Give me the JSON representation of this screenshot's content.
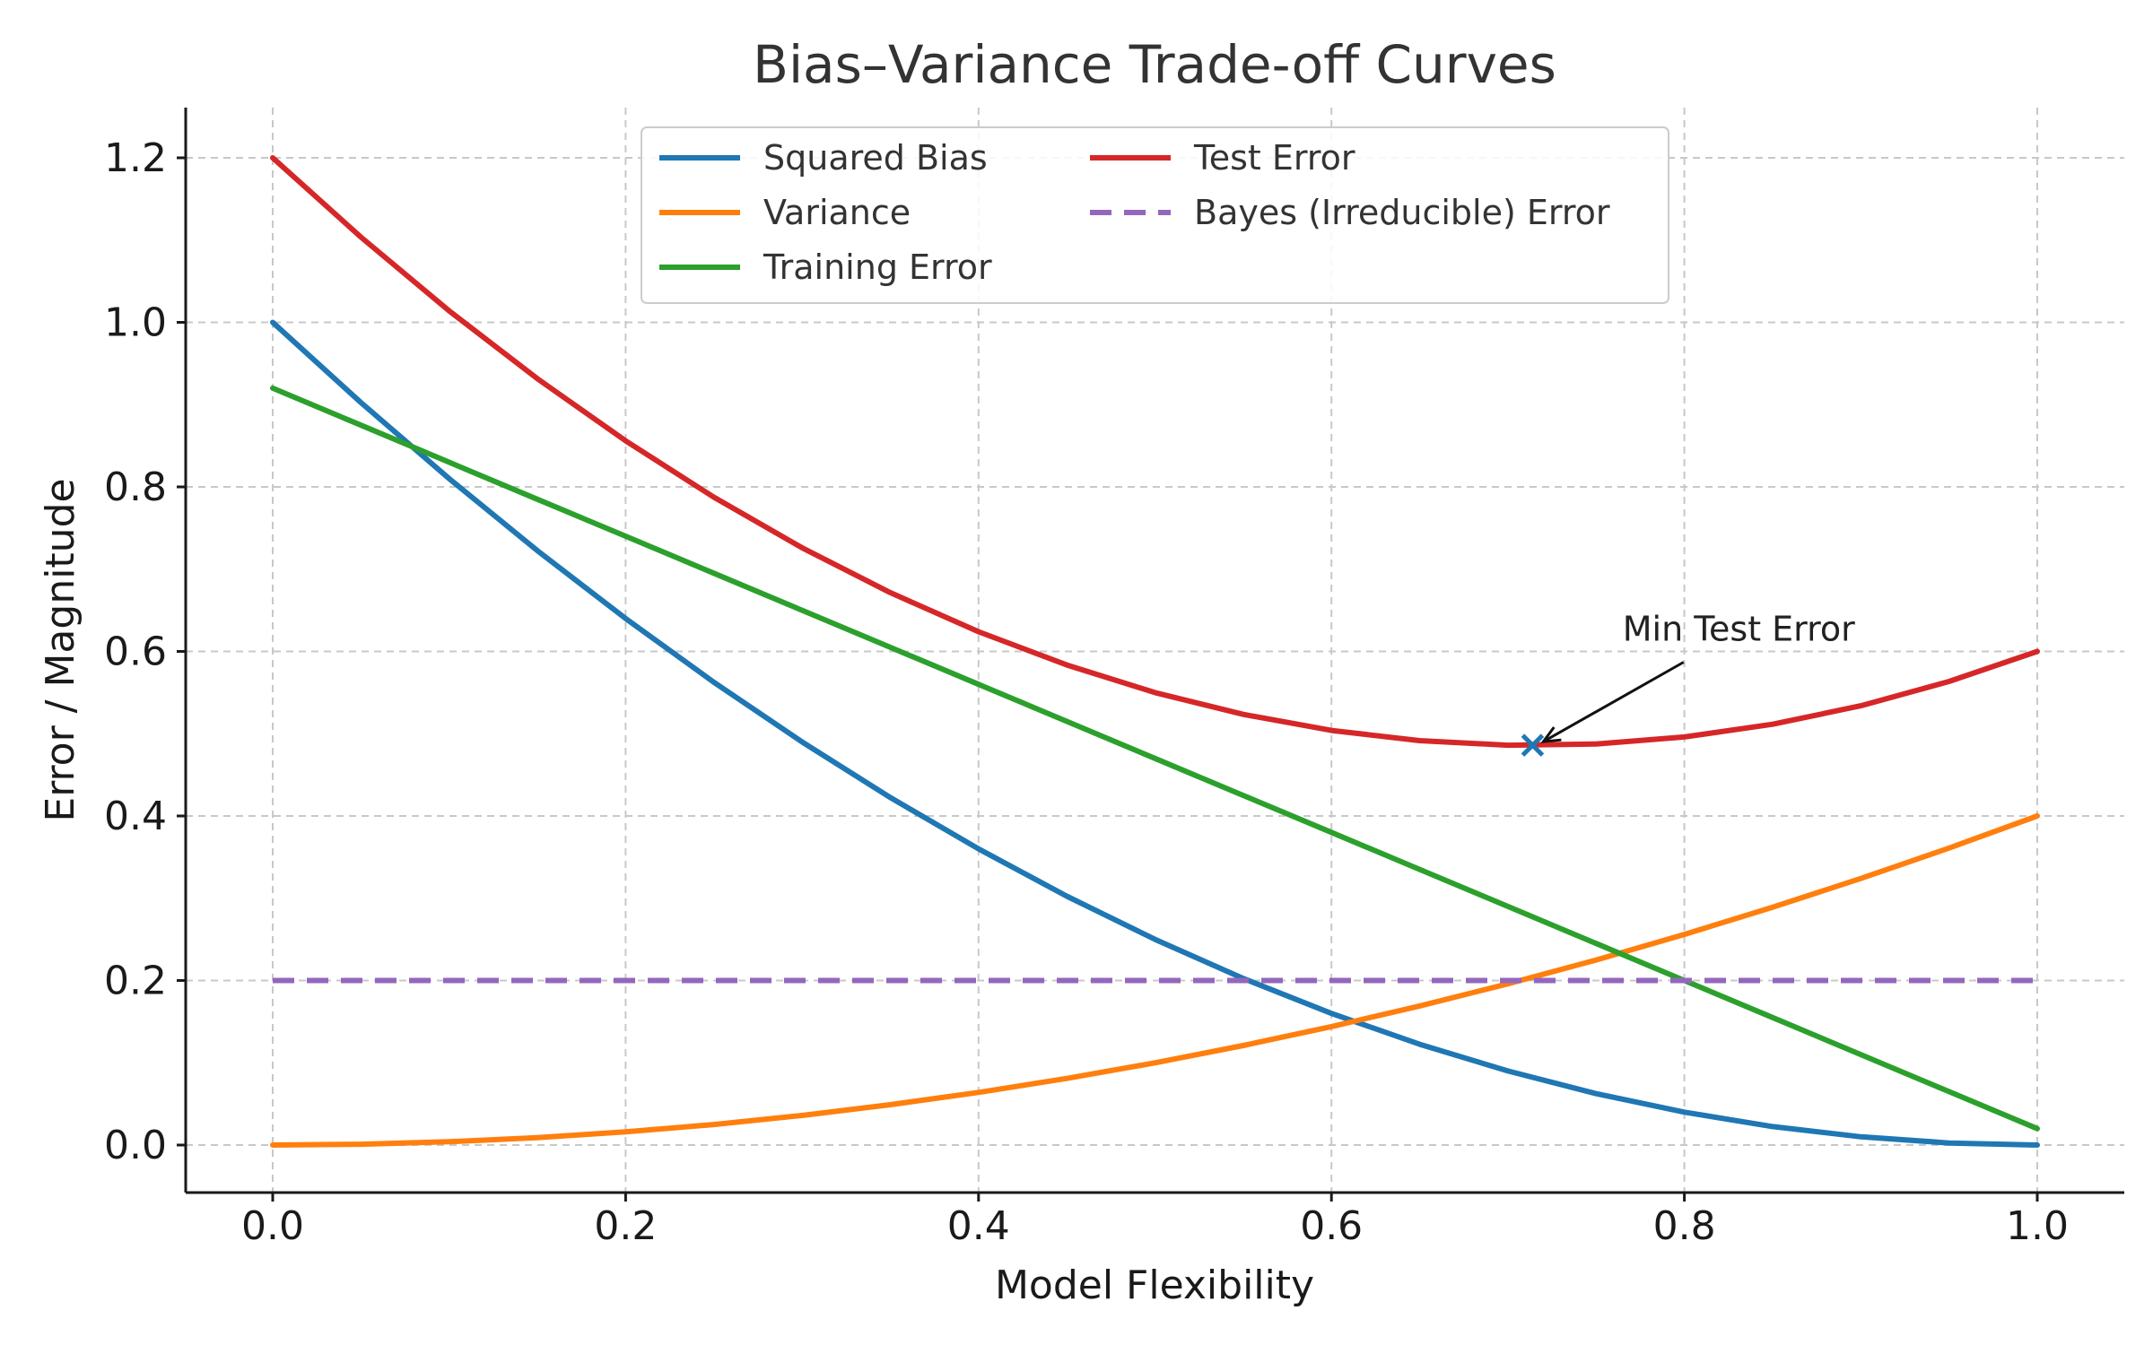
{
  "chart_data": {
    "type": "line",
    "title": "Bias–Variance Trade-off Curves",
    "xlabel": "Model Flexibility",
    "ylabel": "Error / Magnitude",
    "xlim": [
      -0.05,
      1.05
    ],
    "ylim": [
      -0.06,
      1.26
    ],
    "xticks": [
      "0.0",
      "0.2",
      "0.4",
      "0.6",
      "0.8",
      "1.0"
    ],
    "xtick_values": [
      0,
      0.2,
      0.4,
      0.6,
      0.8,
      1.0
    ],
    "yticks": [
      "0.0",
      "0.2",
      "0.4",
      "0.6",
      "0.8",
      "1.0",
      "1.2"
    ],
    "ytick_values": [
      0,
      0.2,
      0.4,
      0.6,
      0.8,
      1.0,
      1.2
    ],
    "grid": true,
    "legend_position": "top-center",
    "x": [
      0.0,
      0.05,
      0.1,
      0.15,
      0.2,
      0.25,
      0.3,
      0.35,
      0.4,
      0.45,
      0.5,
      0.55,
      0.6,
      0.65,
      0.7,
      0.75,
      0.8,
      0.85,
      0.9,
      0.95,
      1.0
    ],
    "series": [
      {
        "name": "Squared Bias",
        "color": "#1f77b4",
        "style": "solid",
        "values": [
          1.0,
          0.9025,
          0.81,
          0.7225,
          0.64,
          0.5625,
          0.49,
          0.4225,
          0.36,
          0.3025,
          0.25,
          0.2025,
          0.16,
          0.1225,
          0.09,
          0.0625,
          0.04,
          0.0225,
          0.01,
          0.0025,
          0.0
        ]
      },
      {
        "name": "Variance",
        "color": "#ff7f0e",
        "style": "solid",
        "values": [
          0.0,
          0.001,
          0.004,
          0.009,
          0.016,
          0.025,
          0.036,
          0.049,
          0.064,
          0.081,
          0.1,
          0.121,
          0.144,
          0.169,
          0.196,
          0.225,
          0.256,
          0.289,
          0.324,
          0.361,
          0.4
        ]
      },
      {
        "name": "Training Error",
        "color": "#2ca02c",
        "style": "solid",
        "values": [
          0.92,
          0.875,
          0.83,
          0.785,
          0.74,
          0.695,
          0.65,
          0.605,
          0.56,
          0.515,
          0.47,
          0.425,
          0.38,
          0.335,
          0.29,
          0.245,
          0.2,
          0.155,
          0.11,
          0.065,
          0.02
        ]
      },
      {
        "name": "Test Error",
        "color": "#d62728",
        "style": "solid",
        "values": [
          1.2,
          1.1035,
          1.014,
          0.9315,
          0.856,
          0.7875,
          0.726,
          0.6715,
          0.624,
          0.5835,
          0.55,
          0.5235,
          0.504,
          0.4915,
          0.486,
          0.4875,
          0.496,
          0.5115,
          0.534,
          0.5635,
          0.6
        ]
      },
      {
        "name": "Bayes (Irreducible) Error",
        "color": "#9467bd",
        "style": "dashed",
        "values": [
          0.2,
          0.2,
          0.2,
          0.2,
          0.2,
          0.2,
          0.2,
          0.2,
          0.2,
          0.2,
          0.2,
          0.2,
          0.2,
          0.2,
          0.2,
          0.2,
          0.2,
          0.2,
          0.2,
          0.2,
          0.2
        ]
      }
    ],
    "min_marker": {
      "x": 0.714,
      "y": 0.486,
      "color": "#1f77b4"
    },
    "annotation": {
      "text": "Min Test Error",
      "x": 0.714,
      "y": 0.486,
      "text_x": 0.765,
      "text_y": 0.6
    }
  }
}
